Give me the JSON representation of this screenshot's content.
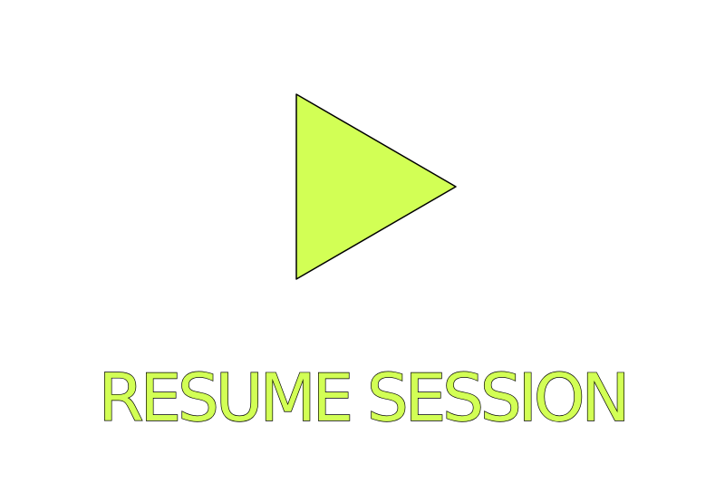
{
  "resume": {
    "label": "RESUME SESSION",
    "icon": "play-icon"
  },
  "colors": {
    "background": "#ffffff",
    "accent": "#d2ff55",
    "outline": "#000000"
  }
}
